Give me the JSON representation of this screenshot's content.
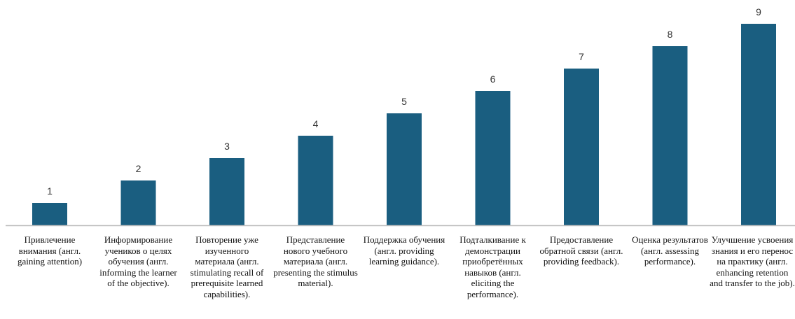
{
  "chart_data": {
    "type": "bar",
    "categories": [
      "Привлечение внимания (англ. gaining attention)",
      "Информирование учеников о целях обучения (англ. informing the learner of the objective).",
      "Повторение уже изученного материала (англ. stimulating recall of prerequisite learned capabilities).",
      "Представление нового учебного материала (англ. presenting the stimulus material).",
      "Поддержка обучения (англ. providing learning guidance).",
      "Подталкивание к демонстрации приобретённых навыков (англ. eliciting the performance).",
      "Предоставление обратной связи (англ. providing feedback).",
      "Оценка результатов (англ. assessing performance).",
      "Улучшение усвоения знания и его перенос на практику (англ. enhancing retention and transfer to the job)."
    ],
    "values": [
      1,
      2,
      3,
      4,
      5,
      6,
      7,
      8,
      9
    ],
    "data_labels": [
      "1",
      "2",
      "3",
      "4",
      "5",
      "6",
      "7",
      "8",
      "9"
    ],
    "ylim": [
      0,
      9
    ],
    "grid": false,
    "legend": "none",
    "bar_color": "#1a5e80",
    "axis_color": "#bfbfbf"
  }
}
